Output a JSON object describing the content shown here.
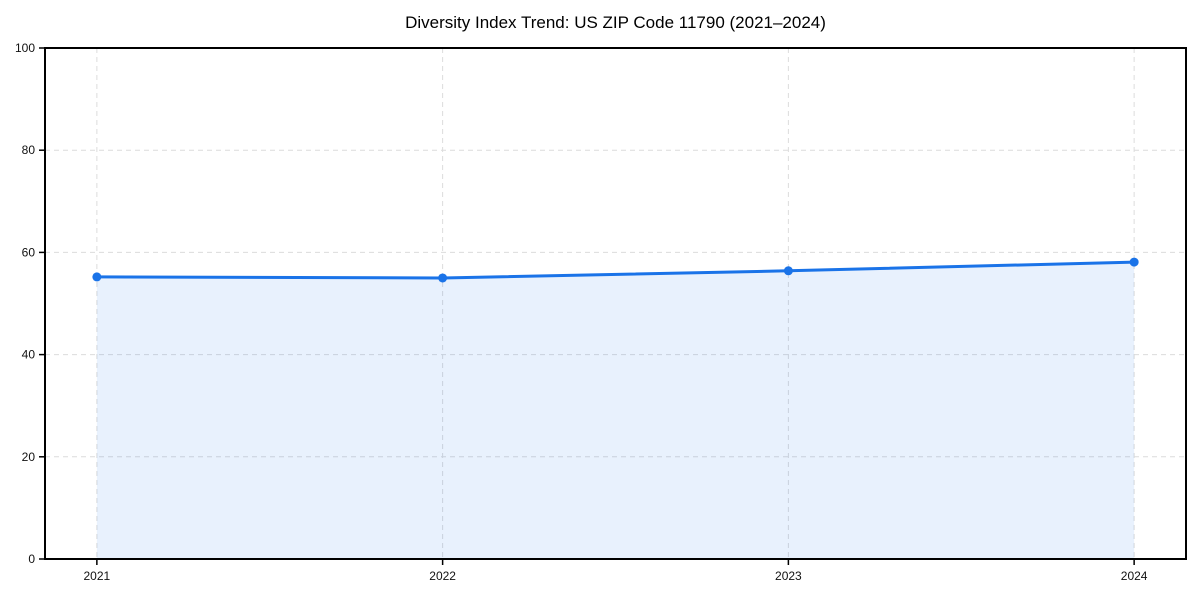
{
  "title": "Diversity Index Trend: US ZIP Code 11790 (2021–2024)",
  "colors": {
    "line": "#1a73e8",
    "fill": "#1a73e8",
    "grid": "#dcdcdc",
    "axis": "#000000",
    "tick_text": "#111111"
  },
  "chart_data": {
    "type": "area",
    "title": "Diversity Index Trend: US ZIP Code 11790 (2021–2024)",
    "x": [
      "2021",
      "2022",
      "2023",
      "2024"
    ],
    "series": [
      {
        "name": "Diversity Index",
        "values": [
          55.2,
          55.0,
          56.4,
          58.1
        ]
      }
    ],
    "xlabel": "",
    "ylabel": "",
    "ylim": [
      0,
      100
    ],
    "yticks": [
      0,
      20,
      40,
      60,
      80,
      100
    ],
    "grid": "dashed, both horizontal and vertical at ticks",
    "legend": "none",
    "line_color": "#1a73e8",
    "fill_color": "#1a73e8",
    "fill_opacity": 0.1,
    "marker": "circle"
  }
}
